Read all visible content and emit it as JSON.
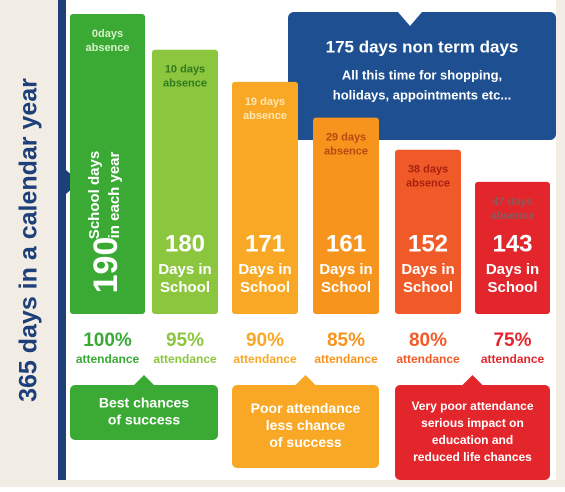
{
  "side_label": "365 days in a calendar year",
  "note": {
    "title": "175 days non term days",
    "lines": [
      "All this time for shopping,",
      "holidays, appointments etc..."
    ]
  },
  "ylim": [
    106,
    190
  ],
  "columns": [
    {
      "absence": [
        "0days",
        "absence"
      ],
      "days": 190,
      "caption": [
        "School days",
        "in each year"
      ],
      "attendance": "100%",
      "attendance_label": "attendance",
      "color": "#3aaa35",
      "text_color": "#d7f0c8"
    },
    {
      "absence": [
        "10 days",
        "absence"
      ],
      "days": 180,
      "caption": [
        "Days in",
        "School"
      ],
      "attendance": "95%",
      "attendance_label": "attendance",
      "color": "#8cc63f",
      "text_color": "#2f7a1e"
    },
    {
      "absence": [
        "19 days",
        "absence"
      ],
      "days": 171,
      "caption": [
        "Days in",
        "School"
      ],
      "attendance": "90%",
      "attendance_label": "attendance",
      "color": "#f9a825",
      "text_color": "#fde7b3"
    },
    {
      "absence": [
        "29 days",
        "absence"
      ],
      "days": 161,
      "caption": [
        "Days in",
        "School"
      ],
      "attendance": "85%",
      "attendance_label": "attendance",
      "color": "#f7941d",
      "text_color": "#b84a10"
    },
    {
      "absence": [
        "38 days",
        "absence"
      ],
      "days": 152,
      "caption": [
        "Days in",
        "School"
      ],
      "attendance": "80%",
      "attendance_label": "attendance",
      "color": "#f05a28",
      "text_color": "#a8200f"
    },
    {
      "absence": [
        "47 days",
        "absence"
      ],
      "days": 143,
      "caption": [
        "Days in",
        "School"
      ],
      "attendance": "75%",
      "attendance_label": "attendance",
      "color": "#e3262c",
      "text_color": "#8a5a5a"
    }
  ],
  "outcomes": [
    {
      "lines": [
        "Best chances",
        "of success"
      ],
      "color": "#3aaa35"
    },
    {
      "lines": [
        "Poor attendance",
        "less chance",
        "of success"
      ],
      "color": "#f9a825"
    },
    {
      "lines": [
        "Very poor attendance",
        "serious impact on",
        "education and",
        "reduced life chances"
      ],
      "color": "#e3262c"
    }
  ]
}
